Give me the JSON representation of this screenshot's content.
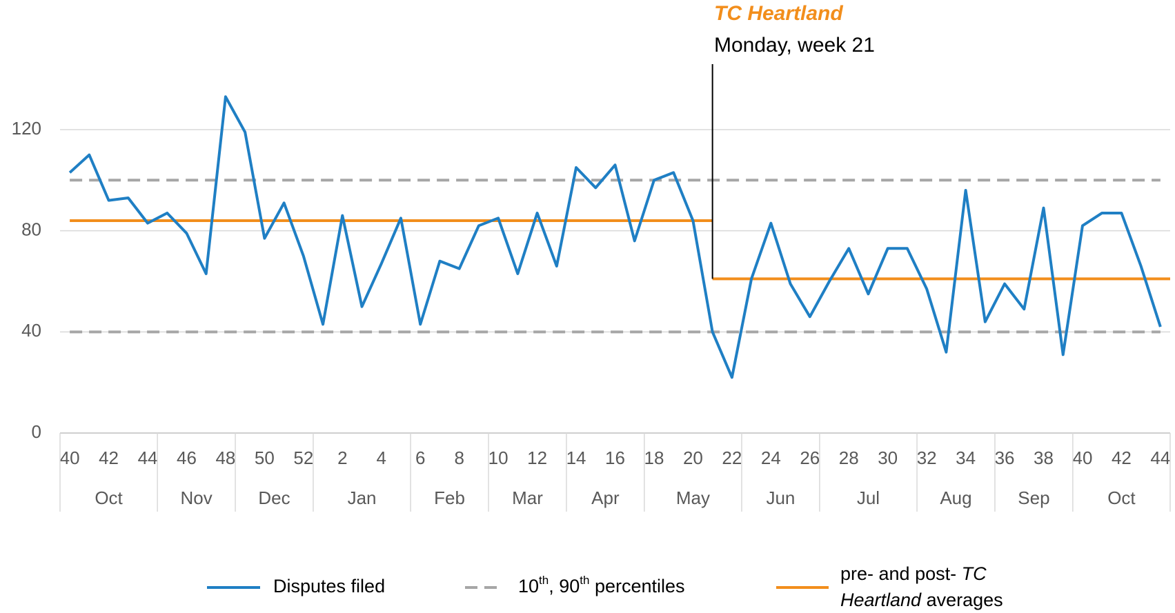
{
  "chart_data": {
    "type": "line",
    "categories": [
      "40",
      null,
      "42",
      null,
      "44",
      null,
      "46",
      null,
      "48",
      null,
      "50",
      null,
      "52",
      null,
      "2",
      null,
      "4",
      null,
      "6",
      null,
      "8",
      null,
      "10",
      null,
      "12",
      null,
      "14",
      null,
      "16",
      null,
      "18",
      null,
      "20",
      null,
      "22",
      null,
      "24",
      null,
      "26",
      null,
      "28",
      null,
      "30",
      null,
      "32",
      null,
      "34",
      null,
      "36",
      null,
      "38",
      null,
      "40",
      null,
      "42",
      null,
      "44"
    ],
    "months": [
      {
        "label": "Oct",
        "weeks": 5
      },
      {
        "label": "Nov",
        "weeks": 4
      },
      {
        "label": "Dec",
        "weeks": 4
      },
      {
        "label": "Jan",
        "weeks": 5
      },
      {
        "label": "Feb",
        "weeks": 4
      },
      {
        "label": "Mar",
        "weeks": 4
      },
      {
        "label": "Apr",
        "weeks": 4
      },
      {
        "label": "May",
        "weeks": 5
      },
      {
        "label": "Jun",
        "weeks": 4
      },
      {
        "label": "Jul",
        "weeks": 5
      },
      {
        "label": "Aug",
        "weeks": 4
      },
      {
        "label": "Sep",
        "weeks": 4
      },
      {
        "label": "Oct",
        "weeks": 5
      }
    ],
    "series": [
      {
        "name": "Disputes filed",
        "color": "#1f7fc4",
        "values": [
          103,
          110,
          92,
          93,
          83,
          87,
          79,
          63,
          133,
          119,
          77,
          91,
          70,
          43,
          86,
          50,
          67,
          85,
          43,
          68,
          65,
          82,
          85,
          63,
          87,
          66,
          105,
          97,
          106,
          76,
          100,
          103,
          84,
          40,
          22,
          61,
          83,
          59,
          46,
          60,
          73,
          55,
          73,
          73,
          57,
          32,
          96,
          44,
          59,
          49,
          89,
          31,
          82,
          87,
          87,
          66,
          42
        ]
      }
    ],
    "percentiles": {
      "name_parts": [
        "10",
        "th",
        ", 90",
        "th",
        " percentiles"
      ],
      "color": "#a6a6a6",
      "values": [
        40,
        100
      ]
    },
    "averages": {
      "name_parts": [
        "pre- and post- ",
        "TC",
        "Heartland",
        " averages"
      ],
      "color": "#f28e1c",
      "segments": [
        {
          "value": 84,
          "start": 0,
          "end": 33
        },
        {
          "value": 61,
          "start": 33,
          "end": 56
        }
      ]
    },
    "annotation": {
      "title": "TC Heartland",
      "text": "Monday, week 21",
      "at": 33
    },
    "ylim": [
      0,
      160
    ],
    "yticks": [
      0,
      40,
      80,
      120
    ],
    "grid": true
  }
}
